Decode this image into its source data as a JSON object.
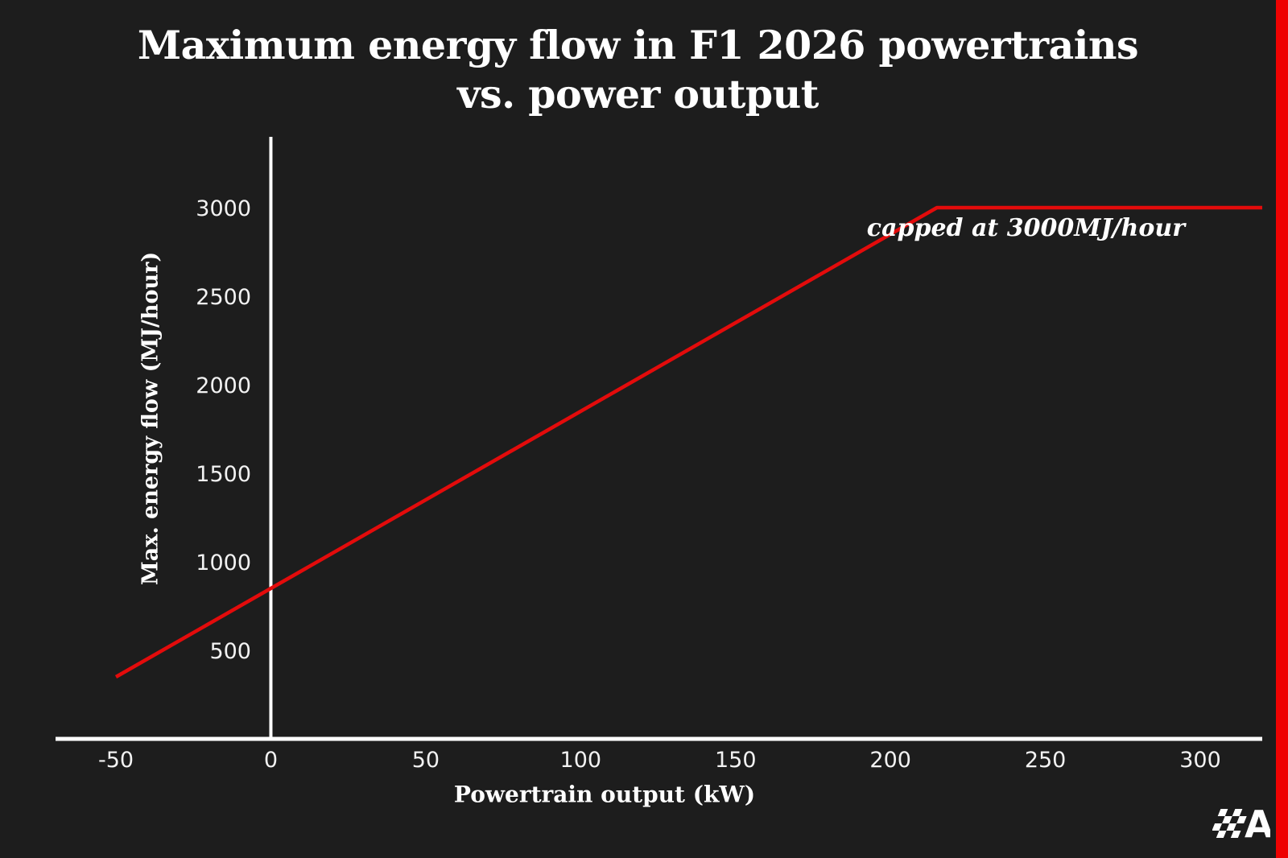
{
  "colors": {
    "background": "#1d1d1d",
    "text": "#ffffff",
    "axis": "#ffffff",
    "tick_text": "#f2f2f2",
    "line_red": "#e30b0b",
    "border_red": "#ee0202"
  },
  "title": {
    "line1": "Maximum energy flow in F1 2026 powertrains",
    "line2": "vs. power output"
  },
  "chart_data": {
    "type": "line",
    "title": "Maximum energy flow in F1 2026 powertrains vs. power output",
    "xlabel": "Powertrain output (kW)",
    "ylabel": "Max. energy flow (MJ/hour)",
    "xlim": [
      -69.5,
      320
    ],
    "ylim": [
      0,
      3400
    ],
    "x_ticks": [
      -50,
      0,
      50,
      100,
      150,
      200,
      250,
      300
    ],
    "y_ticks": [
      500,
      1000,
      1500,
      2000,
      2500,
      3000
    ],
    "grid": false,
    "legend": "none",
    "series": [
      {
        "name": "Maximum energy flow",
        "color": "#e30b0b",
        "points": [
          [
            -50,
            350
          ],
          [
            215,
            3000
          ],
          [
            320,
            3000
          ]
        ]
      }
    ],
    "annotation": {
      "text": "capped at 3000MJ/hour"
    }
  },
  "logo": {
    "letter": "A"
  }
}
